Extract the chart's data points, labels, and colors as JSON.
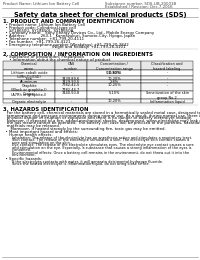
{
  "bg_color": "#ffffff",
  "header_left": "Product Name: Lithium Ion Battery Cell",
  "header_right_line1": "Substance number: SDS-LIB-20001B",
  "header_right_line2": "Established / Revision: Dec.7.2016",
  "title": "Safety data sheet for chemical products (SDS)",
  "section1_title": "1. PRODUCT AND COMPANY IDENTIFICATION",
  "section1_lines": [
    "  • Product name: Lithium Ion Battery Cell",
    "  • Product code: Cylindrical-type cell",
    "     SY18650U, SY18650L, SY18650A",
    "  • Company name:   Sony Energy Devices Co., Ltd., Mobile Energy Company",
    "  • Address:            263-1   Kannazukuri, Sumoto-City, Hyogo, Japan",
    "  • Telephone number:  +81-799-20-4111",
    "  • Fax number:  +81-799-26-4121",
    "  • Emergency telephone number (Weekdays) +81-799-20-3842",
    "                                       (Night and holiday) +81-799-26-4101"
  ],
  "section2_title": "2. COMPOSITION / INFORMATION ON INGREDIENTS",
  "section2_subtitle": "  • Substance or preparation: Preparation",
  "section2_sub2": "     • Information about the chemical nature of product",
  "table_header_texts": [
    "Chemical\nname",
    "CAS\nnumber",
    "Concentration /\nConcentration range\n(10-90%)",
    "Classification and\nhazard labeling"
  ],
  "table_rows": [
    [
      "Lithium cobalt oxide\n(LiMn-Co(O4))",
      "-",
      "30-60%",
      "-"
    ],
    [
      "Iron",
      "7439-89-6",
      "10-20%",
      "-"
    ],
    [
      "Aluminum",
      "7429-90-5",
      "2-8%",
      "-"
    ],
    [
      "Graphite\n(Black or graphite-I)\n(A7Rh or graphite-l)",
      "7782-42-5\n7782-44-7",
      "10-25%",
      "-"
    ],
    [
      "Copper",
      "7440-50-8",
      "5-10%",
      "Sensitization of the skin\ngroup No.2"
    ],
    [
      "Organic electrolyte",
      "-",
      "10-20%",
      "Inflammation liquid"
    ]
  ],
  "section3_title": "3. HAZARDS IDENTIFICATION",
  "section3_para1_lines": [
    "   For the battery cell, chemical materials are stored in a hermetically sealed metal case, designed to withstand",
    "   temperature and pressure environments during normal use. As a result, during normal use, there is no",
    "   physical danger of eruption or explosion and there is no danger of battery electrolyte leakage.",
    "   However, if exposed to a fire, added mechanical shocks, decomposed, when electrolyte may leak out,",
    "   the gas means cannot be operated. The battery cell case will be precised of the particles, hazardous",
    "   materials may be released.",
    "      Moreover, if heated strongly by the surrounding fire, toxic gas may be emitted."
  ],
  "section3_bullet1": "  • Most important hazard and effects:",
  "section3_health": "     Human health effects:",
  "section3_health_lines": [
    "        Inhalation: The release of the electrolyte has an anesthesia action and stimulates a respiratory tract.",
    "        Skin contact: The release of the electrolyte stimulates a skin. The electrolyte skin contact causes a",
    "        sore and stimulation on the skin.",
    "        Eye contact: The release of the electrolyte stimulates eyes. The electrolyte eye contact causes a sore",
    "        and stimulation on the eye. Especially, a substance that causes a strong inflammation of the eyes is",
    "        contained.",
    "        Environmental effects: Once a battery cell remains in the environment, do not throw out it into the",
    "        environment."
  ],
  "section3_specific": "  • Specific hazards:",
  "section3_specific_lines": [
    "        If the electrolyte contacts with water, it will generate detrimental hydrogen fluoride.",
    "        Since the heated electrolyte is inflammation liquid, do not bring close to fire."
  ],
  "text_color": "#000000",
  "fs_header": 2.8,
  "fs_title": 4.8,
  "fs_section": 3.8,
  "fs_body": 2.8,
  "fs_table": 2.5
}
